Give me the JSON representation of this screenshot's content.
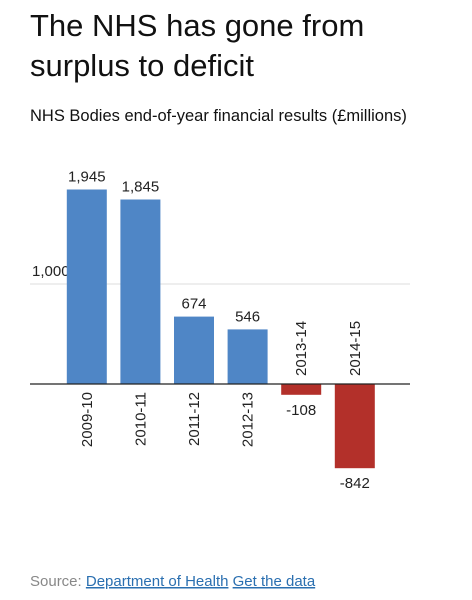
{
  "chart_data": {
    "type": "bar",
    "title": [
      "The NHS has gone from",
      "surplus to deficit"
    ],
    "subtitle": "NHS Bodies end-of-year financial results (£millions)",
    "categories": [
      "2009-10",
      "2010-11",
      "2011-12",
      "2012-13",
      "2013-14",
      "2014-15"
    ],
    "values": [
      1945,
      1845,
      674,
      546,
      -108,
      -842
    ],
    "value_labels": [
      "1,945",
      "1,845",
      "674",
      "546",
      "-108",
      "-842"
    ],
    "colors": [
      "#4f86c6",
      "#4f86c6",
      "#4f86c6",
      "#4f86c6",
      "#b3302a",
      "#b3302a"
    ],
    "ylim": [
      -1000,
      2000
    ],
    "yticks": [
      {
        "value": 1000,
        "label": "1,000"
      }
    ],
    "grid": true,
    "source_label": "Source:",
    "source": "Department of Health",
    "data_link": "Get the data"
  }
}
